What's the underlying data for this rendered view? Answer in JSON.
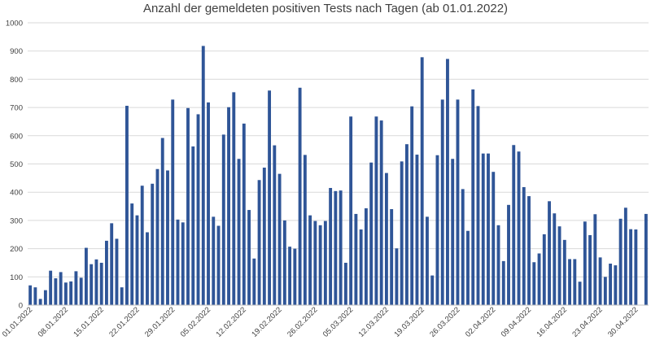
{
  "chart_data": {
    "type": "bar",
    "title": "Anzahl der gemeldeten positiven Tests nach Tagen (ab 01.01.2022)",
    "xlabel": "",
    "ylabel": "",
    "ylim": [
      0,
      1000
    ],
    "yticks": [
      0,
      100,
      200,
      300,
      400,
      500,
      600,
      700,
      800,
      900,
      1000
    ],
    "grid": true,
    "color": "#2F5597",
    "x_tick_labels": [
      "01.01.2022",
      "08.01.2022",
      "15.01.2022",
      "22.01.2022",
      "29.01.2022",
      "05.02.2022",
      "12.02.2022",
      "19.02.2022",
      "26.02.2022",
      "05.03.2022",
      "12.03.2022",
      "19.03.2022",
      "26.03.2022",
      "02.04.2022",
      "09.04.2022",
      "16.04.2022",
      "23.04.2022",
      "30.04.2022"
    ],
    "x_tick_every": 7,
    "values": [
      70,
      63,
      22,
      53,
      122,
      95,
      117,
      80,
      84,
      120,
      97,
      203,
      145,
      162,
      150,
      228,
      290,
      235,
      63,
      706,
      360,
      318,
      423,
      258,
      430,
      482,
      592,
      477,
      728,
      303,
      293,
      698,
      562,
      676,
      918,
      718,
      313,
      281,
      604,
      701,
      754,
      518,
      643,
      337,
      165,
      443,
      487,
      760,
      566,
      465,
      300,
      207,
      200,
      770,
      532,
      318,
      298,
      283,
      298,
      415,
      404,
      406,
      150,
      668,
      323,
      268,
      343,
      505,
      668,
      654,
      468,
      340,
      201,
      509,
      570,
      704,
      533,
      878,
      313,
      105,
      531,
      728,
      872,
      518,
      728,
      411,
      263,
      764,
      705,
      537,
      537,
      472,
      283,
      156,
      355,
      567,
      544,
      418,
      386,
      152,
      183,
      251,
      368,
      325,
      279,
      231,
      163,
      163,
      83,
      296,
      248,
      322,
      169,
      100,
      147,
      141,
      306,
      345,
      269,
      268,
      null,
      323
    ]
  }
}
